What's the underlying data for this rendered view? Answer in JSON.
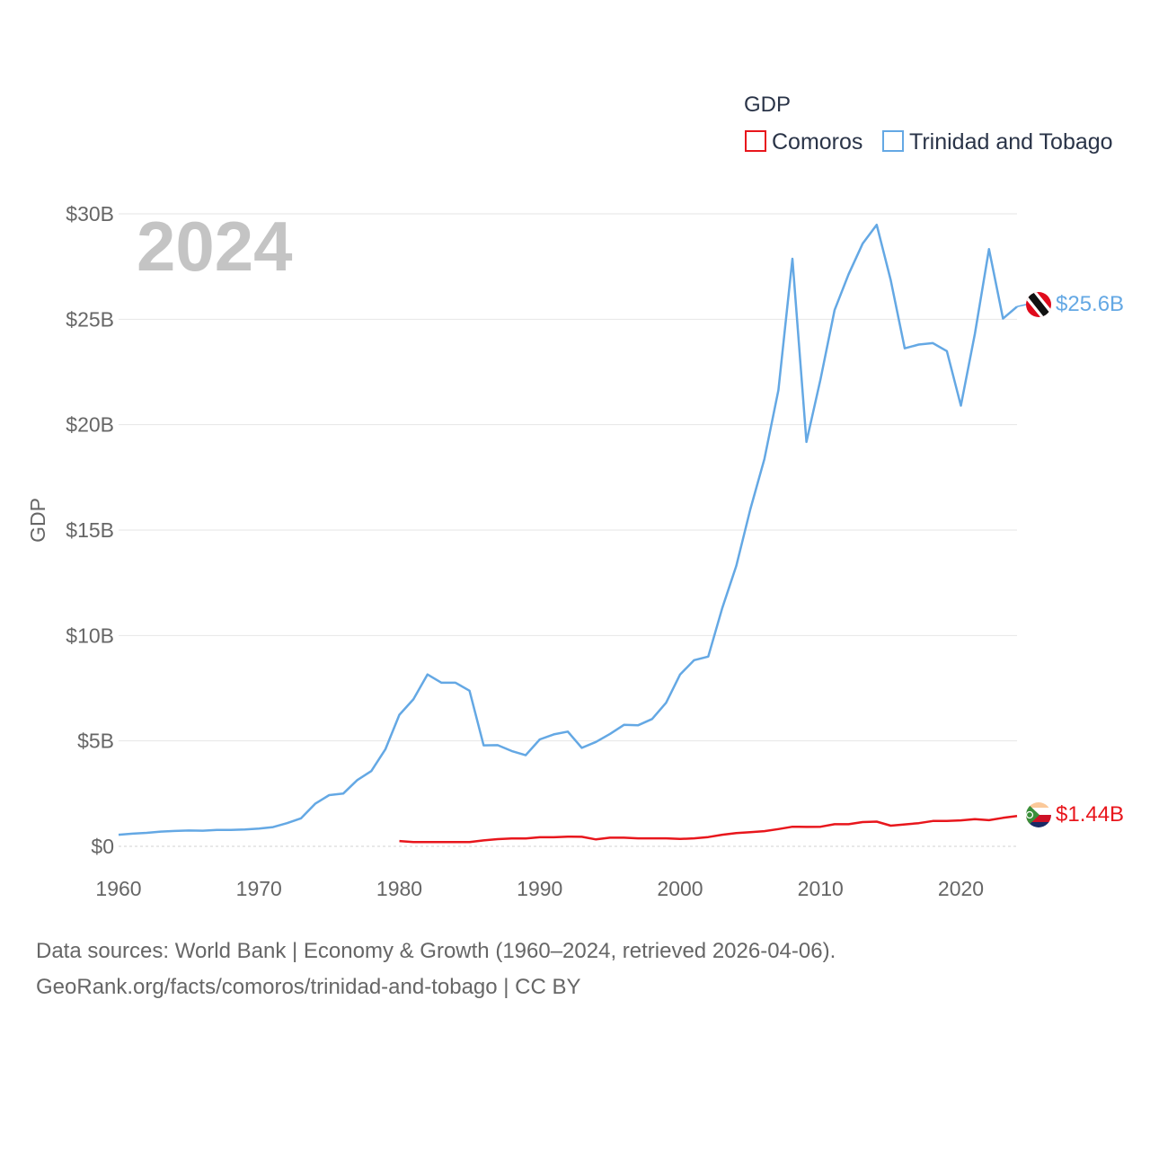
{
  "chart_data": {
    "type": "line",
    "title": "",
    "year_label": "2024",
    "ylabel": "GDP",
    "xlabel": "",
    "xlim": [
      1960,
      2024
    ],
    "ylim": [
      0,
      30
    ],
    "x_ticks": [
      1960,
      1970,
      1980,
      1990,
      2000,
      2010,
      2020
    ],
    "x_tick_labels": [
      "1960",
      "1970",
      "1980",
      "1990",
      "2000",
      "2010",
      "2020"
    ],
    "y_ticks": [
      0,
      5,
      10,
      15,
      20,
      25,
      30
    ],
    "y_tick_labels": [
      "$0",
      "$5B",
      "$10B",
      "$15B",
      "$20B",
      "$25B",
      "$30B"
    ],
    "grid": true,
    "legend": {
      "title": "GDP",
      "position": "top-right",
      "entries": [
        "Comoros",
        "Trinidad and Tobago"
      ]
    },
    "series": [
      {
        "name": "Comoros",
        "color": "#e8161c",
        "flag": "comoros-flag",
        "end_label": "$1.44B",
        "x": [
          1980,
          1981,
          1982,
          1983,
          1984,
          1985,
          1986,
          1987,
          1988,
          1989,
          1990,
          1991,
          1992,
          1993,
          1994,
          1995,
          1996,
          1997,
          1998,
          1999,
          2000,
          2001,
          2002,
          2003,
          2004,
          2005,
          2006,
          2007,
          2008,
          2009,
          2010,
          2011,
          2012,
          2013,
          2014,
          2015,
          2016,
          2017,
          2018,
          2019,
          2020,
          2021,
          2022,
          2023,
          2024
        ],
        "values": [
          0.25,
          0.2,
          0.2,
          0.2,
          0.2,
          0.2,
          0.28,
          0.34,
          0.37,
          0.37,
          0.43,
          0.43,
          0.46,
          0.45,
          0.33,
          0.41,
          0.41,
          0.38,
          0.38,
          0.38,
          0.35,
          0.38,
          0.44,
          0.55,
          0.63,
          0.67,
          0.72,
          0.82,
          0.93,
          0.92,
          0.93,
          1.05,
          1.05,
          1.15,
          1.17,
          0.98,
          1.04,
          1.1,
          1.2,
          1.2,
          1.23,
          1.29,
          1.24,
          1.35,
          1.44
        ]
      },
      {
        "name": "Trinidad and Tobago",
        "color": "#64a8e4",
        "flag": "trinidad-and-tobago-flag",
        "end_label": "$25.6B",
        "x": [
          1960,
          1961,
          1962,
          1963,
          1964,
          1965,
          1966,
          1967,
          1968,
          1969,
          1970,
          1971,
          1972,
          1973,
          1974,
          1975,
          1976,
          1977,
          1978,
          1979,
          1980,
          1981,
          1982,
          1983,
          1984,
          1985,
          1986,
          1987,
          1988,
          1989,
          1990,
          1991,
          1992,
          1993,
          1994,
          1995,
          1996,
          1997,
          1998,
          1999,
          2000,
          2001,
          2002,
          2003,
          2004,
          2005,
          2006,
          2007,
          2008,
          2009,
          2010,
          2011,
          2012,
          2013,
          2014,
          2015,
          2016,
          2017,
          2018,
          2019,
          2020,
          2021,
          2022,
          2023,
          2024
        ],
        "values": [
          0.55,
          0.6,
          0.64,
          0.7,
          0.73,
          0.75,
          0.74,
          0.78,
          0.78,
          0.8,
          0.84,
          0.91,
          1.1,
          1.33,
          2.02,
          2.43,
          2.5,
          3.14,
          3.57,
          4.6,
          6.24,
          6.97,
          8.15,
          7.76,
          7.76,
          7.38,
          4.79,
          4.8,
          4.52,
          4.32,
          5.07,
          5.31,
          5.44,
          4.67,
          4.95,
          5.33,
          5.76,
          5.74,
          6.04,
          6.81,
          8.15,
          8.83,
          9.0,
          11.3,
          13.3,
          15.98,
          18.37,
          21.64,
          27.87,
          19.18,
          22.16,
          25.43,
          27.13,
          28.58,
          29.48,
          26.86,
          23.62,
          23.8,
          23.87,
          23.49,
          20.9,
          24.31,
          28.33,
          25.03,
          25.6
        ]
      }
    ]
  },
  "footer": {
    "line1": "Data sources: World Bank | Economy & Growth (1960–2024, retrieved 2026-04-06).",
    "line2": "GeoRank.org/facts/comoros/trinidad-and-tobago | CC BY"
  }
}
